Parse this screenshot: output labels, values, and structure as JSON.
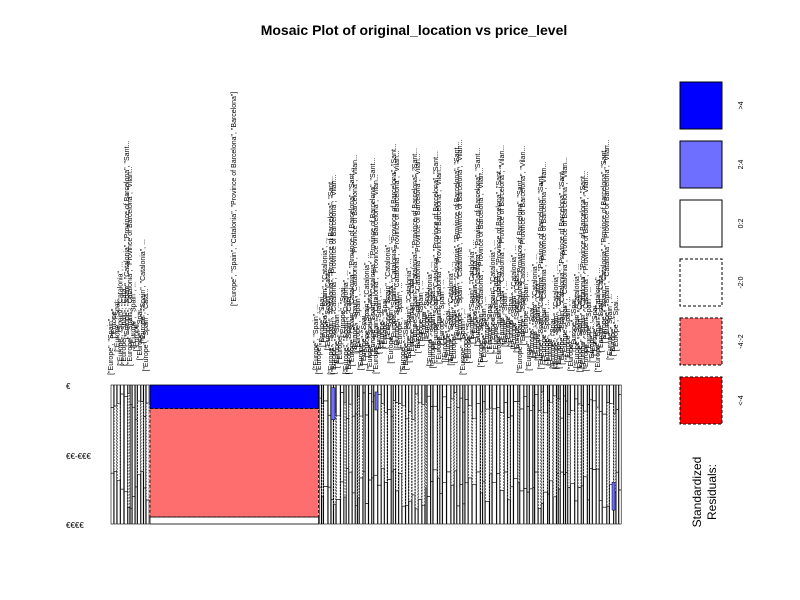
{
  "chart_data": {
    "type": "mosaic",
    "title": "Mosaic Plot of original_location vs price_level",
    "price_levels": [
      "€",
      "€€-€€€",
      "€€€€"
    ],
    "highlighted_category": {
      "label": "[\"Europe\", \"Spain\", \"Catalonia\", \"Province of Barcelona\", \"Barcelona\"]",
      "column_share": 0.33,
      "row_shares": [
        0.17,
        0.78,
        0.05
      ],
      "residual_classes": [
        ">4",
        "-4:-2",
        "2:4"
      ]
    },
    "other_category_labels": [
      "[\"Europe\", \"Spain\", ...",
      "[\"Europe\", ...",
      "[\"Europe\", \"Spai...",
      "[\"Europe\", \"Spain\", \"Catalonia\", ...",
      "[\"Europe\", \"Spain\", \"Cata...",
      "[\"Europe\", \"Spain\", \"Catalonia\", \"Province of Barcelona\", \"Sant...",
      "[\"Europe\", \"Spain\", \"Catalonia\", \"Province of Barcelona\", \"Vilan..."
    ],
    "legend": {
      "title_line1": "Standardized",
      "title_line2": "Residuals:",
      "items": [
        {
          "label": ">4",
          "fill": "#0000ff",
          "dashed": false
        },
        {
          "label": "2:4",
          "fill": "#6e6eff",
          "dashed": false
        },
        {
          "label": "0:2",
          "fill": "#ffffff",
          "dashed": false
        },
        {
          "label": "-2:0",
          "fill": "#ffffff",
          "dashed": true
        },
        {
          "label": "-4:-2",
          "fill": "#ff6e6e",
          "dashed": true
        },
        {
          "label": "<-4",
          "fill": "#ff0000",
          "dashed": true
        }
      ]
    }
  }
}
